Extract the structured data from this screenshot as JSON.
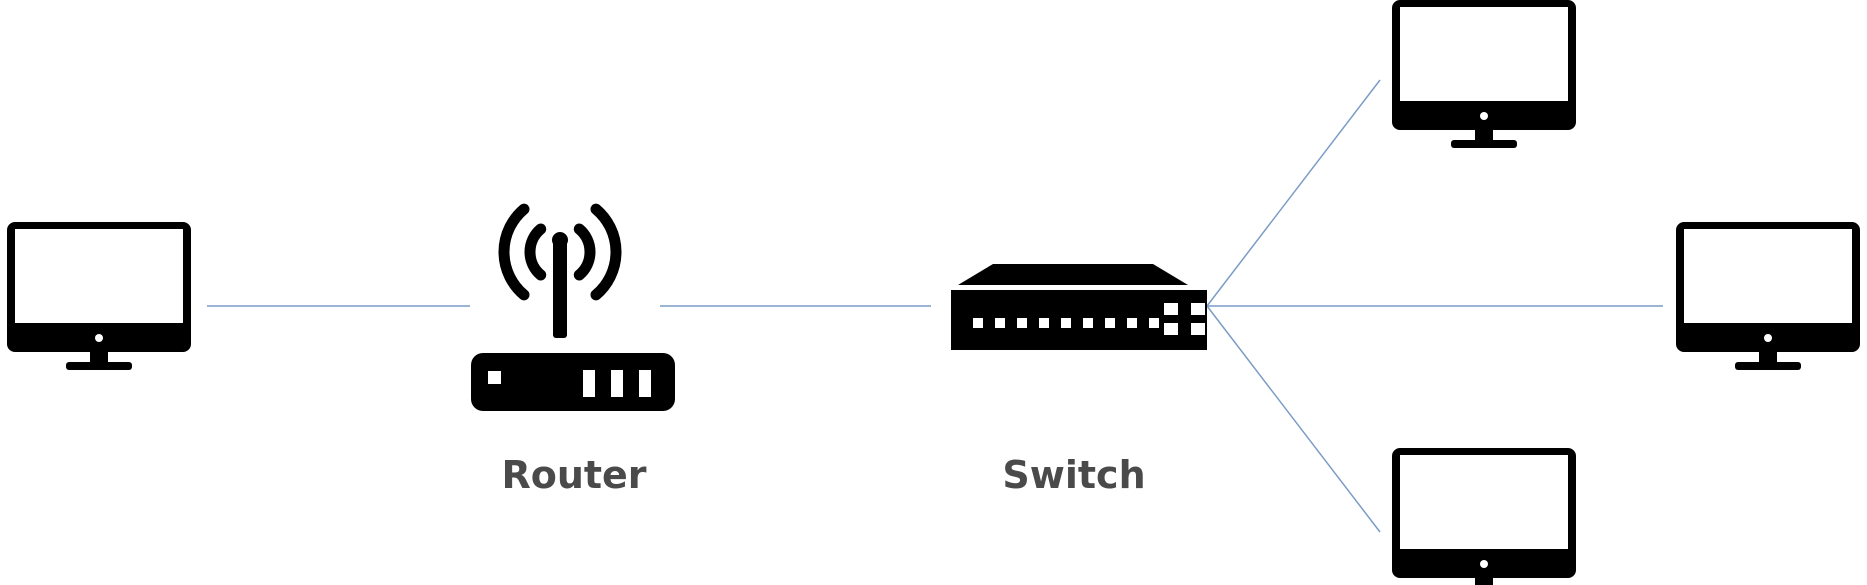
{
  "diagram": {
    "colors": {
      "link": "#7a9cc6",
      "icon": "#000000",
      "screen": "#ffffff",
      "label": "#4a4a4a"
    },
    "nodes": [
      {
        "id": "pc-left",
        "type": "monitor",
        "icon": "monitor-icon",
        "label": ""
      },
      {
        "id": "router",
        "type": "router",
        "icon": "router-icon",
        "label": "Router"
      },
      {
        "id": "switch",
        "type": "switch",
        "icon": "switch-icon",
        "label": "Switch"
      },
      {
        "id": "pc-top-right",
        "type": "monitor",
        "icon": "monitor-icon",
        "label": ""
      },
      {
        "id": "pc-mid-right",
        "type": "monitor",
        "icon": "monitor-icon",
        "label": ""
      },
      {
        "id": "pc-bottom-right",
        "type": "monitor",
        "icon": "monitor-icon",
        "label": ""
      }
    ],
    "links": [
      {
        "from": "pc-left",
        "to": "router"
      },
      {
        "from": "router",
        "to": "switch"
      },
      {
        "from": "switch",
        "to": "pc-top-right"
      },
      {
        "from": "switch",
        "to": "pc-mid-right"
      },
      {
        "from": "switch",
        "to": "pc-bottom-right"
      }
    ]
  }
}
